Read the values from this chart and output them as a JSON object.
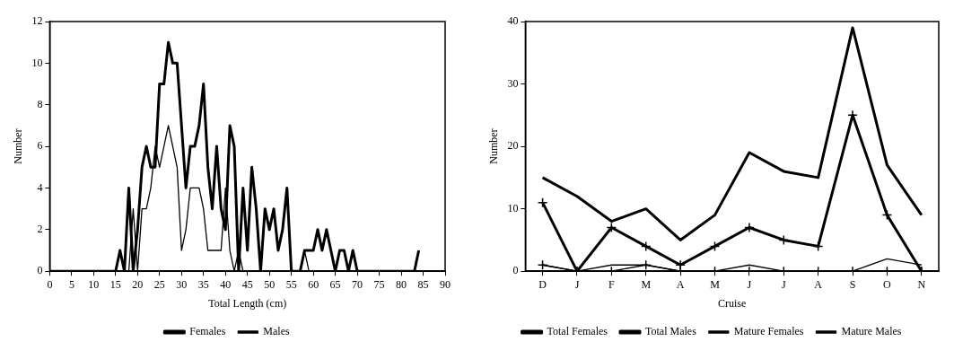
{
  "chart_data": [
    {
      "type": "line",
      "xlabel": "Total Length (cm)",
      "ylabel": "Number",
      "legend": "bottom",
      "grid": false,
      "marker": "none",
      "xlim": [
        0,
        90
      ],
      "xticks": [
        0,
        5,
        10,
        15,
        20,
        25,
        30,
        35,
        40,
        45,
        50,
        55,
        60,
        65,
        70,
        75,
        80,
        85,
        90
      ],
      "ylim": [
        0,
        12
      ],
      "yticks": [
        0,
        2,
        4,
        6,
        8,
        10,
        12
      ],
      "x": [
        0,
        1,
        2,
        3,
        4,
        5,
        6,
        7,
        8,
        9,
        10,
        11,
        12,
        13,
        14,
        15,
        16,
        17,
        18,
        19,
        20,
        21,
        22,
        23,
        24,
        25,
        26,
        27,
        28,
        29,
        30,
        31,
        32,
        33,
        34,
        35,
        36,
        37,
        38,
        39,
        40,
        41,
        42,
        43,
        44,
        45,
        46,
        47,
        48,
        49,
        50,
        51,
        52,
        53,
        54,
        55,
        56,
        57,
        58,
        59,
        60,
        61,
        62,
        63,
        64,
        65,
        66,
        67,
        68,
        69,
        70,
        71,
        72,
        73,
        74,
        75,
        76,
        77,
        78,
        79,
        80,
        81,
        82,
        83,
        84
      ],
      "series": [
        {
          "name": "Females",
          "color": "#000000",
          "values": [
            0,
            0,
            0,
            0,
            0,
            0,
            0,
            0,
            0,
            0,
            0,
            0,
            0,
            0,
            0,
            0,
            1,
            0,
            4,
            0,
            2,
            5,
            6,
            5,
            5,
            9,
            9,
            11,
            10,
            10,
            7,
            4,
            6,
            6,
            7,
            9,
            5,
            3,
            6,
            3,
            2,
            7,
            6,
            0,
            4,
            1,
            5,
            3,
            0,
            3,
            2,
            3,
            1,
            2,
            4,
            0,
            0,
            0,
            1,
            1,
            1,
            2,
            1,
            2,
            1,
            0,
            1,
            1,
            0,
            1,
            0,
            0,
            0,
            0,
            0,
            0,
            0,
            0,
            0,
            0,
            0,
            0,
            0,
            0,
            1
          ]
        },
        {
          "name": "Males",
          "color": "#000000",
          "values": [
            0,
            0,
            0,
            0,
            0,
            0,
            0,
            0,
            0,
            0,
            0,
            0,
            0,
            0,
            0,
            0,
            0,
            0,
            0,
            3,
            0,
            3,
            3,
            4,
            6,
            5,
            6,
            7,
            6,
            5,
            1,
            2,
            4,
            4,
            4,
            3,
            1,
            1,
            1,
            1,
            4,
            1,
            0,
            1,
            0,
            0,
            0,
            0,
            0,
            0,
            0,
            0,
            0,
            0,
            0,
            0,
            0,
            0,
            1,
            0,
            0,
            0,
            0,
            0,
            0,
            0,
            0,
            0,
            0,
            0,
            0,
            0,
            0,
            0,
            0,
            0,
            0,
            0,
            0,
            0,
            0,
            0,
            0,
            0,
            0
          ]
        }
      ]
    },
    {
      "type": "line",
      "xlabel": "Cruise",
      "ylabel": "Number",
      "legend": "bottom",
      "grid": false,
      "ylim": [
        0,
        40
      ],
      "yticks": [
        0,
        10,
        20,
        30,
        40
      ],
      "categories": [
        "D",
        "J",
        "F",
        "M",
        "A",
        "M",
        "J",
        "J",
        "A",
        "S",
        "O",
        "N"
      ],
      "series": [
        {
          "name": "Total Females",
          "color": "#000000",
          "marker": "none",
          "values": [
            15,
            12,
            8,
            10,
            5,
            9,
            19,
            16,
            15,
            39,
            17,
            9
          ]
        },
        {
          "name": "Total Males",
          "color": "#000000",
          "marker": "cross",
          "values": [
            11,
            0,
            7,
            4,
            1,
            4,
            7,
            5,
            4,
            25,
            9,
            0
          ]
        },
        {
          "name": "Mature Females",
          "color": "#000000",
          "marker": "none",
          "values": [
            1,
            0,
            1,
            1,
            0,
            0,
            1,
            0,
            0,
            0,
            2,
            1
          ]
        },
        {
          "name": "Mature Males",
          "color": "#000000",
          "marker": "cross",
          "values": [
            1,
            0,
            0,
            1,
            0,
            0,
            0,
            0,
            0,
            0,
            0,
            0
          ]
        }
      ]
    }
  ]
}
